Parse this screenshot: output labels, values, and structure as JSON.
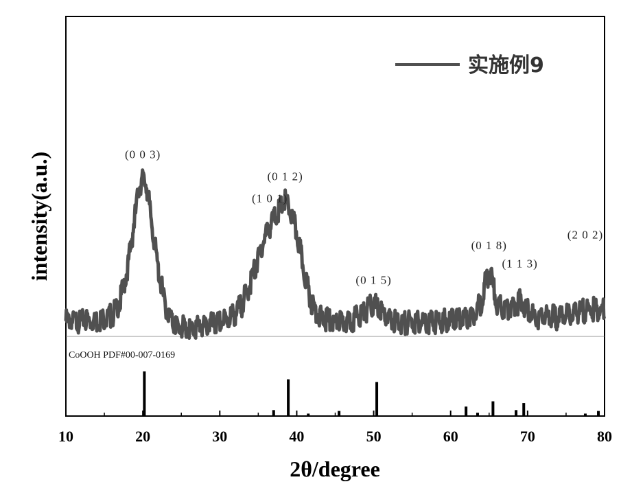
{
  "chart_data": {
    "type": "line",
    "xlabel": "2θ/degree",
    "ylabel": "intensity(a.u.)",
    "xlim": [
      10,
      80
    ],
    "xticks": [
      10,
      20,
      30,
      40,
      50,
      60,
      70,
      80
    ],
    "legend": {
      "entries": [
        "实施例9"
      ],
      "position": "top-right"
    },
    "series": [
      {
        "name": "实施例9",
        "color": "#505050",
        "x": [
          10,
          12,
          14,
          15,
          16,
          17,
          18,
          19,
          19.5,
          20,
          20.5,
          21,
          22,
          23,
          24,
          25,
          26,
          27,
          28,
          29,
          30,
          31,
          32,
          33,
          34,
          35,
          36,
          37,
          38,
          38.5,
          39,
          40,
          41,
          42,
          43,
          44,
          45,
          46,
          47,
          48,
          49,
          50,
          51,
          52,
          53,
          54,
          55,
          56,
          57,
          58,
          59,
          60,
          61,
          62,
          63,
          64,
          64.5,
          65,
          65.5,
          66,
          67,
          68,
          69,
          70,
          71,
          72,
          73,
          74,
          75,
          76,
          77,
          78,
          79,
          80
        ],
        "y": [
          0.04,
          0.04,
          0.04,
          0.05,
          0.07,
          0.14,
          0.32,
          0.62,
          0.78,
          0.82,
          0.78,
          0.62,
          0.32,
          0.1,
          0.02,
          0.0,
          0.0,
          0.01,
          0.01,
          0.02,
          0.03,
          0.05,
          0.08,
          0.14,
          0.25,
          0.38,
          0.52,
          0.6,
          0.66,
          0.7,
          0.66,
          0.52,
          0.3,
          0.13,
          0.06,
          0.04,
          0.03,
          0.03,
          0.04,
          0.07,
          0.1,
          0.13,
          0.09,
          0.05,
          0.03,
          0.03,
          0.03,
          0.03,
          0.04,
          0.04,
          0.04,
          0.04,
          0.05,
          0.06,
          0.08,
          0.14,
          0.24,
          0.32,
          0.24,
          0.12,
          0.1,
          0.12,
          0.15,
          0.11,
          0.06,
          0.06,
          0.06,
          0.06,
          0.07,
          0.08,
          0.09,
          0.1,
          0.1,
          0.09
        ]
      }
    ],
    "peak_labels": [
      {
        "label": "(0 0 3)",
        "x": 20
      },
      {
        "label": "(1 0 1)",
        "x": 36.5
      },
      {
        "label": "(0 1 2)",
        "x": 38.5
      },
      {
        "label": "(0 1 5)",
        "x": 50
      },
      {
        "label": "(0 1 8)",
        "x": 65
      },
      {
        "label": "(1 1 3)",
        "x": 69
      },
      {
        "label": "(2 0 2)",
        "x": 77.5
      }
    ],
    "reference": {
      "label": "CoOOH  PDF#00-007-0169",
      "lines": [
        {
          "x": 20.2,
          "intensity": 1.0
        },
        {
          "x": 37.0,
          "intensity": 0.12
        },
        {
          "x": 38.9,
          "intensity": 0.82
        },
        {
          "x": 41.5,
          "intensity": 0.04
        },
        {
          "x": 45.5,
          "intensity": 0.1
        },
        {
          "x": 50.4,
          "intensity": 0.76
        },
        {
          "x": 62.0,
          "intensity": 0.2
        },
        {
          "x": 63.5,
          "intensity": 0.06
        },
        {
          "x": 65.5,
          "intensity": 0.32
        },
        {
          "x": 68.5,
          "intensity": 0.12
        },
        {
          "x": 69.5,
          "intensity": 0.28
        },
        {
          "x": 77.5,
          "intensity": 0.04
        },
        {
          "x": 79.2,
          "intensity": 0.1
        }
      ]
    }
  }
}
